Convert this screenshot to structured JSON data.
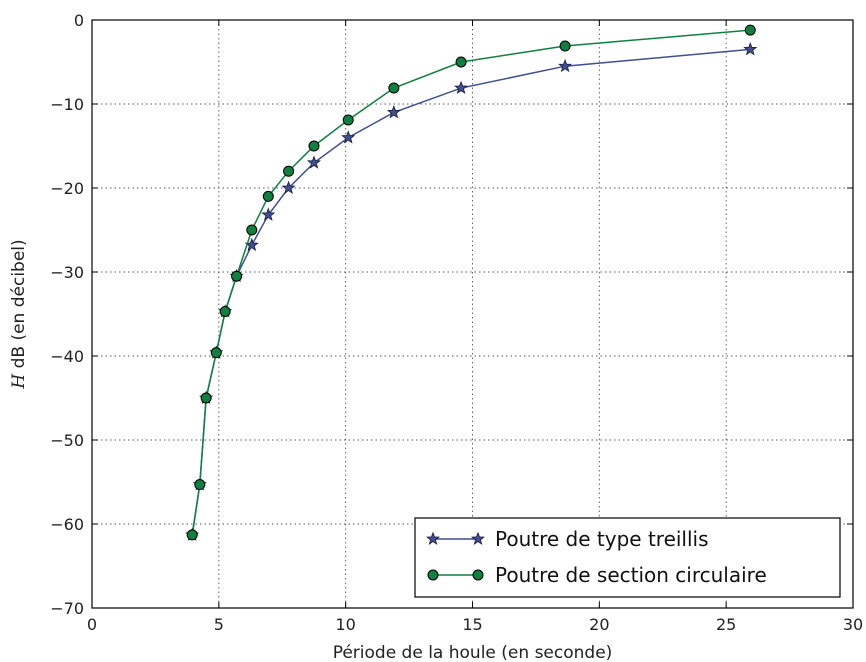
{
  "chart_data": {
    "type": "line",
    "title": "",
    "xlabel": "Période de la houle (en seconde)",
    "ylabel": {
      "symbol": "H",
      "text": " dB (en décibel)"
    },
    "xlim": [
      0,
      30
    ],
    "ylim": [
      -70,
      0
    ],
    "xticks": [
      0,
      5,
      10,
      15,
      20,
      25,
      30
    ],
    "yticks": [
      0,
      -10,
      -20,
      -30,
      -40,
      -50,
      -60,
      -70
    ],
    "grid": true,
    "legend": "bottom-right",
    "series": [
      {
        "name": "Poutre de type treillis",
        "color": "#3f4f8f",
        "marker": "star",
        "x": [
          3.95,
          4.25,
          4.5,
          4.9,
          5.25,
          5.7,
          6.3,
          6.95,
          7.75,
          8.75,
          10.1,
          11.9,
          14.55,
          18.65,
          25.95
        ],
        "y": [
          -61.3,
          -55.3,
          -45,
          -39.6,
          -34.7,
          -30.5,
          -26.8,
          -23.2,
          -20,
          -17,
          -14,
          -11,
          -8.1,
          -5.5,
          -3.5
        ]
      },
      {
        "name": "Poutre de section circulaire",
        "color": "#108040",
        "marker": "circle",
        "x": [
          3.95,
          4.25,
          4.5,
          4.9,
          5.25,
          5.7,
          6.3,
          6.95,
          7.75,
          8.75,
          10.1,
          11.9,
          14.55,
          18.65,
          25.95
        ],
        "y": [
          -61.3,
          -55.3,
          -45,
          -39.6,
          -34.7,
          -30.5,
          -25,
          -21,
          -18,
          -15,
          -11.9,
          -8.1,
          -5,
          -3.1,
          -1.2
        ]
      }
    ]
  }
}
